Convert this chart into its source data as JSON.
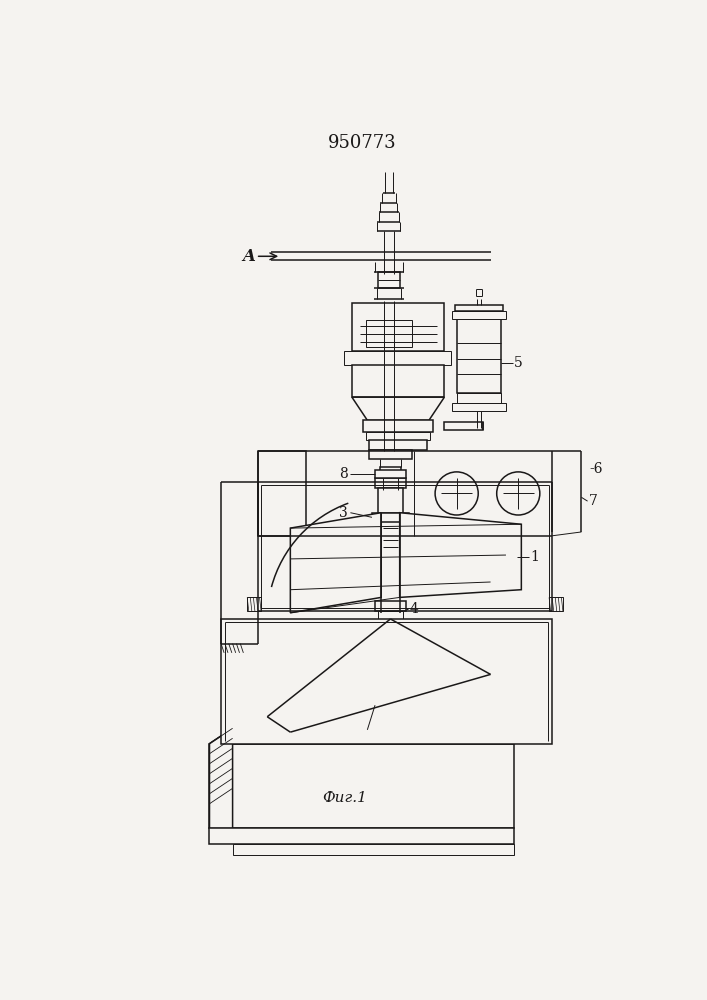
{
  "title": "950773",
  "fig_label": "Фиг.1",
  "bg_color": "#f5f3f0",
  "line_color": "#1a1818",
  "lw_thin": 0.7,
  "lw_med": 1.1,
  "lw_thick": 1.6
}
